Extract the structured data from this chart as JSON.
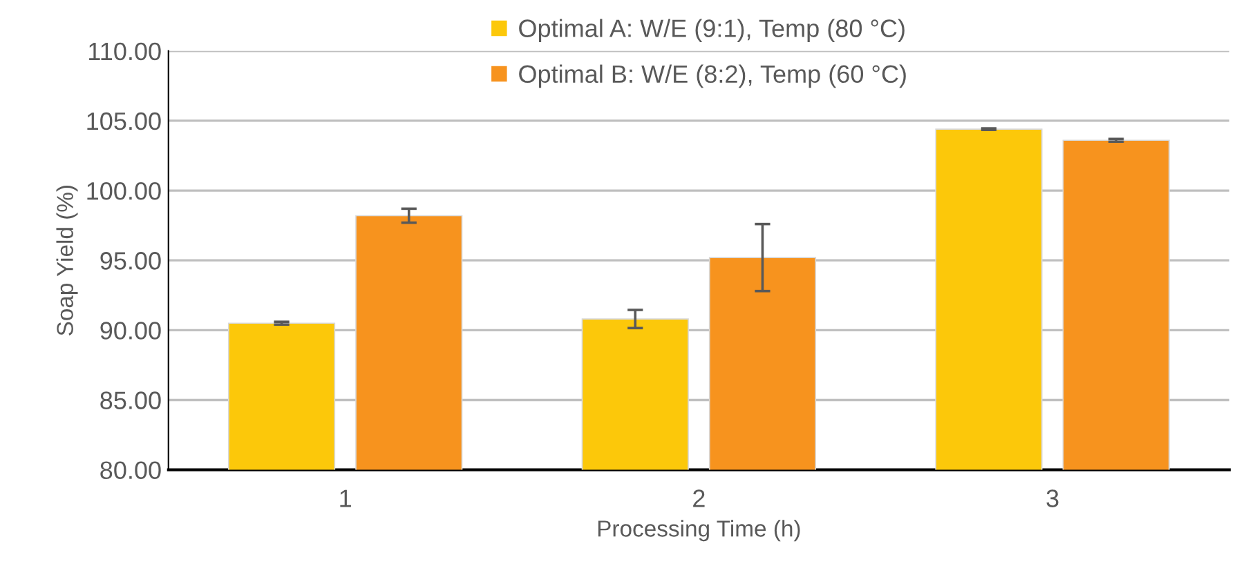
{
  "chart_data": {
    "type": "bar",
    "xlabel": "Processing Time (h)",
    "ylabel": "Soap Yield (%)",
    "categories": [
      "1",
      "2",
      "3"
    ],
    "series": [
      {
        "name": "Optimal A: W/E (9:1), Temp (80 °C)",
        "color": "#fcc80a",
        "values": [
          90.5,
          90.8,
          104.4
        ],
        "errors": [
          0.1,
          0.65,
          0.05
        ]
      },
      {
        "name": "Optimal B: W/E (8:2), Temp (60 °C)",
        "color": "#f7931e",
        "values": [
          98.2,
          95.2,
          103.6
        ],
        "errors": [
          0.5,
          2.4,
          0.1
        ]
      }
    ],
    "ylim": [
      80,
      110
    ],
    "yticks": [
      {
        "value": 80,
        "label": "80.00"
      },
      {
        "value": 85,
        "label": "85.00"
      },
      {
        "value": 90,
        "label": "90.00"
      },
      {
        "value": 95,
        "label": "95.00"
      },
      {
        "value": 100,
        "label": "100.00"
      },
      {
        "value": 105,
        "label": "105.00"
      },
      {
        "value": 110,
        "label": "110.00"
      }
    ],
    "grid": "y",
    "legend": "top"
  }
}
